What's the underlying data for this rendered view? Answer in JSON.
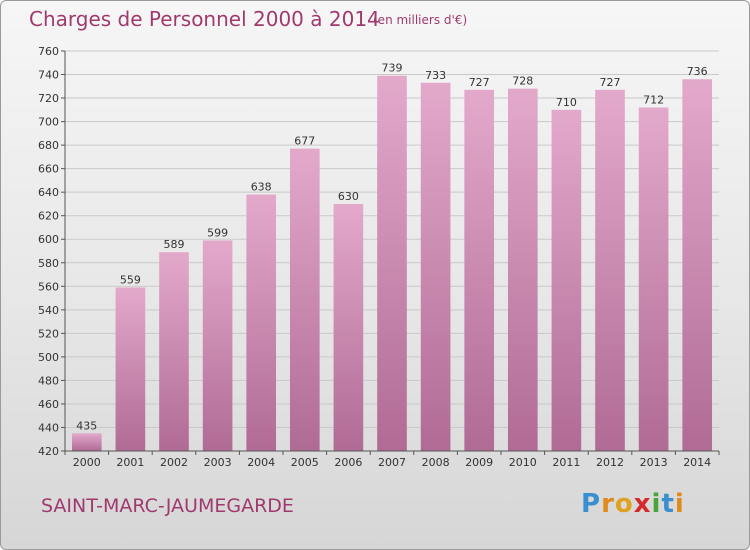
{
  "header": {
    "title": "Charges de Personnel 2000 à 2014",
    "subtitle": "(en milliers d'€)"
  },
  "footer": {
    "commune": "SAINT-MARC-JAUMEGARDE",
    "logo_text": "Proxiti"
  },
  "colors": {
    "title": "#a03a6e",
    "bar_top": "#e3a9cb",
    "bar_bottom": "#b06b95"
  },
  "chart_data": {
    "type": "bar",
    "title": "Charges de Personnel 2000 à 2014",
    "subtitle": "(en milliers d'€)",
    "xlabel": "",
    "ylabel": "",
    "categories": [
      "2000",
      "2001",
      "2002",
      "2003",
      "2004",
      "2005",
      "2006",
      "2007",
      "2008",
      "2009",
      "2010",
      "2011",
      "2012",
      "2013",
      "2014"
    ],
    "values": [
      435,
      559,
      589,
      599,
      638,
      677,
      630,
      739,
      733,
      727,
      728,
      710,
      727,
      712,
      736
    ],
    "ylim": [
      420,
      760
    ],
    "yticks": [
      420,
      440,
      460,
      480,
      500,
      520,
      540,
      560,
      580,
      600,
      620,
      640,
      660,
      680,
      700,
      720,
      740,
      760
    ],
    "grid": true,
    "data_labels": true
  }
}
